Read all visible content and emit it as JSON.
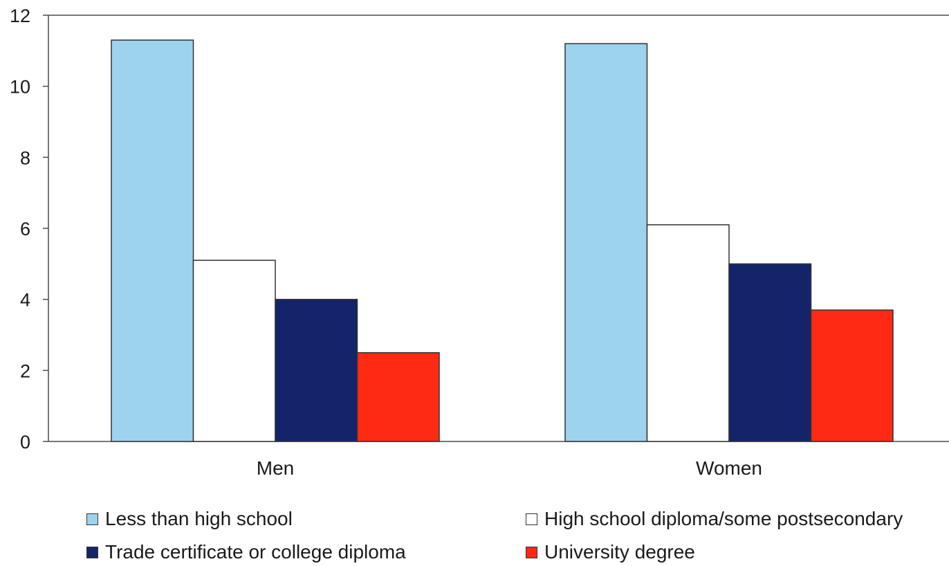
{
  "chart_data": {
    "type": "bar",
    "title": "",
    "xlabel": "",
    "ylabel": "",
    "ylim": [
      0,
      12
    ],
    "yticks": [
      0,
      2,
      4,
      6,
      8,
      10,
      12
    ],
    "categories": [
      "Men",
      "Women"
    ],
    "series": [
      {
        "name": "Less than high school",
        "color": "#9dd3ee",
        "values": [
          11.3,
          11.2
        ]
      },
      {
        "name": "High school diploma/some postsecondary",
        "color": "#ffffff",
        "values": [
          5.1,
          6.1
        ]
      },
      {
        "name": "Trade certificate or college diploma",
        "color": "#14246b",
        "values": [
          4.0,
          5.0
        ]
      },
      {
        "name": "University degree",
        "color": "#ff2a14",
        "values": [
          2.5,
          3.7
        ]
      }
    ],
    "grid": false,
    "legend_position": "bottom"
  }
}
